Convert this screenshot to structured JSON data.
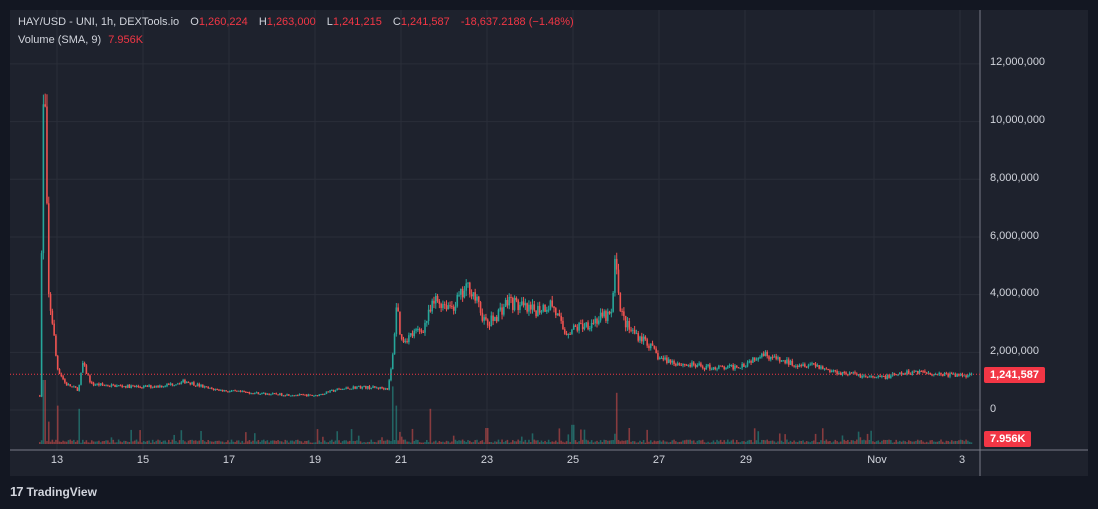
{
  "header": {
    "symbol": "HAY/USD - UNI, 1h, DEXTools.io",
    "o_label": "O",
    "o_value": "1,260,224",
    "h_label": "H",
    "h_value": "1,263,000",
    "l_label": "L",
    "l_value": "1,241,215",
    "c_label": "C",
    "c_value": "1,241,587",
    "change": "-18,637.2188 (−1.48%)"
  },
  "volume_legend": {
    "label": "Volume (SMA, 9)",
    "value": "7.956K"
  },
  "price_tag": "1,241,587",
  "volume_tag": "7.956K",
  "footer": {
    "brand": "TradingView",
    "logo": "17"
  },
  "colors": {
    "up": "#26a69a",
    "down": "#ef5350",
    "tag": "#f23645",
    "grid": "#2a2e39",
    "bg": "#1e222d",
    "page": "#131722"
  },
  "chart_data": {
    "type": "candlestick",
    "y_ticks": [
      "12,000,000",
      "10,000,000",
      "8,000,000",
      "6,000,000",
      "4,000,000",
      "2,000,000",
      "0"
    ],
    "y_tick_values": [
      12000000,
      10000000,
      8000000,
      6000000,
      4000000,
      2000000,
      0
    ],
    "x_ticks": [
      "13",
      "15",
      "17",
      "19",
      "21",
      "23",
      "25",
      "27",
      "29",
      "Nov",
      "3"
    ],
    "last_close": 1241587,
    "price_path": [
      [
        12.6,
        500000
      ],
      [
        12.7,
        12300000
      ],
      [
        12.8,
        4000000
      ],
      [
        12.9,
        3000000
      ],
      [
        13.0,
        1500000
      ],
      [
        13.2,
        900000
      ],
      [
        13.5,
        700000
      ],
      [
        13.6,
        1600000
      ],
      [
        13.8,
        900000
      ],
      [
        14.2,
        850000
      ],
      [
        15.0,
        800000
      ],
      [
        15.5,
        850000
      ],
      [
        16.0,
        1000000
      ],
      [
        16.5,
        750000
      ],
      [
        17.0,
        650000
      ],
      [
        18.0,
        550000
      ],
      [
        19.0,
        500000
      ],
      [
        19.5,
        700000
      ],
      [
        20.0,
        800000
      ],
      [
        20.7,
        750000
      ],
      [
        20.8,
        1700000
      ],
      [
        20.9,
        3800000
      ],
      [
        21.0,
        2400000
      ],
      [
        21.5,
        2800000
      ],
      [
        21.8,
        3800000
      ],
      [
        22.2,
        3600000
      ],
      [
        22.6,
        4300000
      ],
      [
        23.0,
        2900000
      ],
      [
        23.5,
        3800000
      ],
      [
        24.0,
        3400000
      ],
      [
        24.5,
        3700000
      ],
      [
        24.8,
        2700000
      ],
      [
        25.0,
        2800000
      ],
      [
        25.5,
        3100000
      ],
      [
        25.9,
        3300000
      ],
      [
        26.0,
        5500000
      ],
      [
        26.1,
        3400000
      ],
      [
        26.3,
        2800000
      ],
      [
        26.7,
        2400000
      ],
      [
        27.0,
        1800000
      ],
      [
        27.5,
        1600000
      ],
      [
        28.0,
        1500000
      ],
      [
        28.6,
        1450000
      ],
      [
        29.0,
        1600000
      ],
      [
        29.4,
        2000000
      ],
      [
        29.8,
        1700000
      ],
      [
        30.2,
        1600000
      ],
      [
        30.6,
        1600000
      ],
      [
        31.0,
        1350000
      ],
      [
        31.5,
        1250000
      ],
      [
        32.0,
        1100000
      ],
      [
        32.5,
        1200000
      ],
      [
        33.0,
        1350000
      ],
      [
        33.5,
        1250000
      ],
      [
        34.0,
        1200000
      ],
      [
        34.3,
        1241587
      ]
    ],
    "volume_spikes": [
      [
        12.7,
        1.0
      ],
      [
        12.8,
        0.35
      ],
      [
        13.0,
        0.6
      ],
      [
        13.5,
        0.55
      ],
      [
        20.8,
        0.9
      ],
      [
        20.9,
        0.6
      ],
      [
        21.7,
        0.55
      ],
      [
        23.0,
        0.25
      ],
      [
        25.0,
        0.3
      ],
      [
        26.0,
        0.8
      ],
      [
        26.3,
        0.25
      ],
      [
        29.3,
        0.2
      ]
    ]
  }
}
